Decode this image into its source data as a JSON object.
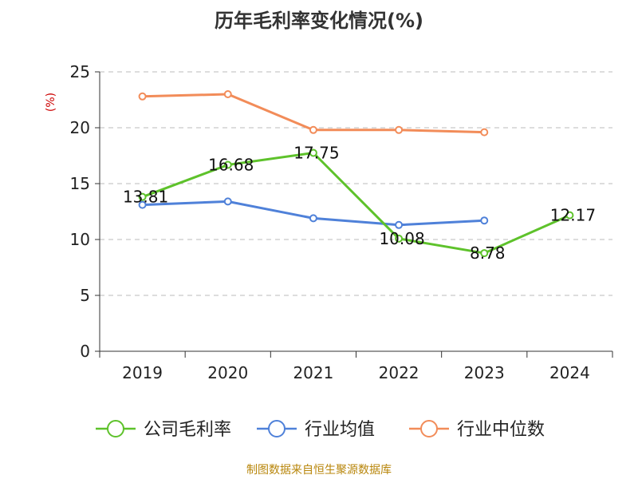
{
  "chart_data": {
    "type": "line",
    "title": "历年毛利率变化情况(%)",
    "ylabel": "(%)",
    "xlabel": "",
    "categories": [
      "2019",
      "2020",
      "2021",
      "2022",
      "2023",
      "2024"
    ],
    "ylim": [
      0,
      25
    ],
    "yticks": [
      0,
      5,
      10,
      15,
      20,
      25
    ],
    "grid": true,
    "legend_position": "bottom",
    "series": [
      {
        "name": "公司毛利率",
        "color": "#5ec22b",
        "values": [
          13.81,
          16.68,
          17.75,
          10.08,
          8.78,
          12.17
        ],
        "labels": [
          "13.81",
          "16.68",
          "17.75",
          "10.08",
          "8.78",
          "12.17"
        ]
      },
      {
        "name": "行业均值",
        "color": "#4f81d9",
        "values": [
          13.1,
          13.4,
          11.9,
          11.3,
          11.7,
          null
        ]
      },
      {
        "name": "行业中位数",
        "color": "#f28c59",
        "values": [
          22.8,
          23.0,
          19.8,
          19.8,
          19.6,
          null
        ]
      }
    ]
  },
  "footer": {
    "source": "制图数据来自恒生聚源数据库"
  }
}
